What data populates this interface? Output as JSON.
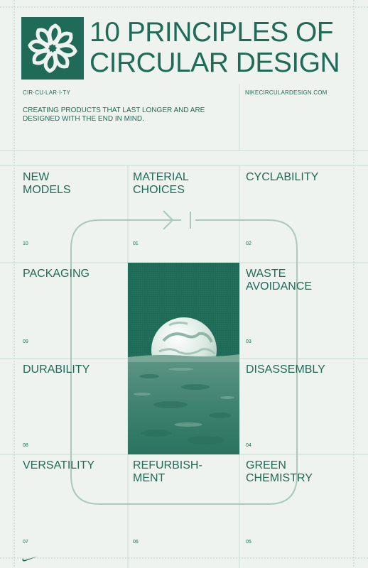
{
  "title": {
    "line1": "10 PRINCIPLES OF",
    "line2": "CIRCULAR DESIGN"
  },
  "header": {
    "left_label": "CIR·CU·LAR·I·TY",
    "right_label": "NIKECIRCULARDESIGN.COM",
    "tagline": "CREATING PRODUCTS THAT LAST LONGER AND ARE DESIGNED WITH THE END IN MIND."
  },
  "principles": [
    {
      "label": "NEW\nMODELS",
      "number": "10"
    },
    {
      "label": "MATERIAL\nCHOICES",
      "number": "01"
    },
    {
      "label": "CYCLABILITY",
      "number": "02"
    },
    {
      "label": "PACKAGING",
      "number": "09"
    },
    {
      "label": "WASTE\nAVOIDANCE",
      "number": "03"
    },
    {
      "label": "DURABILITY",
      "number": "08"
    },
    {
      "label": "DISASSEMBLY",
      "number": "04"
    },
    {
      "label": "VERSATILITY",
      "number": "07"
    },
    {
      "label": "REFURBISH-\nMENT",
      "number": "06"
    },
    {
      "label": "GREEN\nCHEMISTRY",
      "number": "05"
    }
  ],
  "colors": {
    "primary": "#1f6b57",
    "background": "#eef3f0",
    "grid": "#b8d2c7"
  },
  "icons": {
    "logo": "circularity-flower-icon",
    "brand": "nike-swoosh-icon"
  }
}
